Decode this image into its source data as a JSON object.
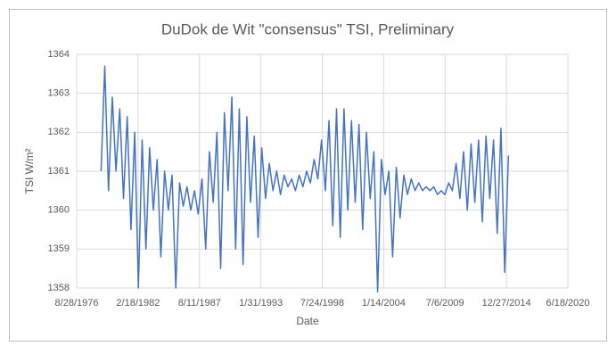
{
  "chart_data": {
    "type": "line",
    "title": "DuDok de Wit \"consensus\" TSI, Preliminary",
    "x_label": "Date",
    "y_label": "TSI W/m²",
    "color": "#4472c4",
    "grid": true,
    "x": [
      "11/1/1978",
      "3/1/1979",
      "7/1/1979",
      "11/1/1979",
      "3/1/1980",
      "7/1/1980",
      "11/1/1980",
      "3/1/1981",
      "7/1/1981",
      "11/1/1981",
      "3/1/1982",
      "7/1/1982",
      "11/1/1982",
      "3/1/1983",
      "7/1/1983",
      "11/1/1983",
      "3/1/1984",
      "7/1/1984",
      "11/1/1984",
      "3/1/1985",
      "7/1/1985",
      "11/1/1985",
      "3/1/1986",
      "7/1/1986",
      "11/1/1986",
      "3/1/1987",
      "7/1/1987",
      "11/1/1987",
      "3/1/1988",
      "7/1/1988",
      "11/1/1988",
      "3/1/1989",
      "7/1/1989",
      "11/1/1989",
      "3/1/1990",
      "7/1/1990",
      "11/1/1990",
      "3/1/1991",
      "7/1/1991",
      "11/1/1991",
      "3/1/1992",
      "7/1/1992",
      "11/1/1992",
      "3/1/1993",
      "7/1/1993",
      "11/1/1993",
      "3/1/1994",
      "7/1/1994",
      "11/1/1994",
      "3/1/1995",
      "7/1/1995",
      "11/1/1995",
      "3/1/1996",
      "7/1/1996",
      "11/1/1996",
      "3/1/1997",
      "7/1/1997",
      "11/1/1997",
      "3/1/1998",
      "7/1/1998",
      "11/1/1998",
      "3/1/1999",
      "7/1/1999",
      "11/1/1999",
      "3/1/2000",
      "7/1/2000",
      "11/1/2000",
      "3/1/2001",
      "7/1/2001",
      "11/1/2001",
      "3/1/2002",
      "7/1/2002",
      "11/1/2002",
      "3/1/2003",
      "7/1/2003",
      "11/1/2003",
      "3/1/2004",
      "7/1/2004",
      "11/1/2004",
      "3/1/2005",
      "7/1/2005",
      "11/1/2005",
      "3/1/2006",
      "7/1/2006",
      "11/1/2006",
      "3/1/2007",
      "7/1/2007",
      "11/1/2007",
      "3/1/2008",
      "7/1/2008",
      "11/1/2008",
      "3/1/2009",
      "7/1/2009",
      "11/1/2009",
      "3/1/2010",
      "7/1/2010",
      "11/1/2010",
      "3/1/2011",
      "7/1/2011",
      "11/1/2011",
      "3/1/2012",
      "7/1/2012",
      "11/1/2012",
      "3/1/2013",
      "7/1/2013",
      "11/1/2013",
      "3/1/2014",
      "7/1/2014",
      "11/1/2014",
      "3/1/2015"
    ],
    "values": [
      1361.0,
      1363.7,
      1360.5,
      1362.9,
      1361.0,
      1362.6,
      1360.3,
      1362.4,
      1359.5,
      1362.0,
      1358.0,
      1361.8,
      1359.0,
      1361.6,
      1360.0,
      1361.3,
      1358.8,
      1361.0,
      1360.0,
      1360.9,
      1358.0,
      1360.7,
      1360.1,
      1360.6,
      1360.0,
      1360.5,
      1359.9,
      1360.8,
      1359.0,
      1361.5,
      1360.2,
      1362.0,
      1358.5,
      1362.5,
      1360.5,
      1362.9,
      1359.0,
      1362.6,
      1358.6,
      1362.4,
      1360.2,
      1361.9,
      1359.3,
      1361.6,
      1360.3,
      1361.2,
      1360.5,
      1361.0,
      1360.4,
      1360.9,
      1360.6,
      1360.8,
      1360.5,
      1360.9,
      1360.6,
      1361.0,
      1360.7,
      1361.3,
      1360.8,
      1361.8,
      1360.5,
      1362.3,
      1359.6,
      1362.6,
      1359.3,
      1362.6,
      1360.0,
      1362.3,
      1360.2,
      1362.2,
      1359.5,
      1362.0,
      1360.3,
      1361.5,
      1357.9,
      1361.3,
      1360.4,
      1361.0,
      1358.8,
      1361.1,
      1359.8,
      1360.9,
      1360.4,
      1360.8,
      1360.5,
      1360.7,
      1360.5,
      1360.6,
      1360.5,
      1360.6,
      1360.4,
      1360.5,
      1360.4,
      1360.7,
      1360.5,
      1361.2,
      1360.3,
      1361.5,
      1360.0,
      1361.7,
      1360.2,
      1361.8,
      1359.7,
      1361.9,
      1360.3,
      1361.8,
      1359.4,
      1362.1,
      1358.4,
      1361.4
    ],
    "xlim": [
      "8/28/1976",
      "6/18/2020"
    ],
    "xticks": [
      "8/28/1976",
      "2/18/1982",
      "8/11/1987",
      "1/31/1993",
      "7/24/1998",
      "1/14/2004",
      "7/6/2009",
      "12/27/2014",
      "6/18/2020"
    ],
    "ylim": [
      1358,
      1364
    ],
    "yticks": [
      1358,
      1359,
      1360,
      1361,
      1362,
      1363,
      1364
    ]
  }
}
